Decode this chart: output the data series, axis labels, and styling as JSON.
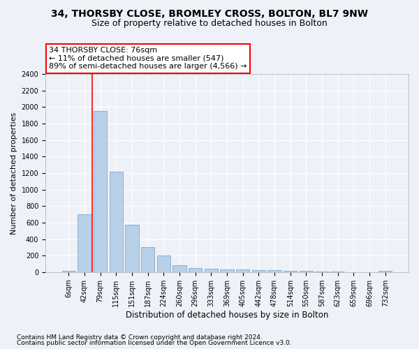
{
  "title_line1": "34, THORSBY CLOSE, BROMLEY CROSS, BOLTON, BL7 9NW",
  "title_line2": "Size of property relative to detached houses in Bolton",
  "xlabel": "Distribution of detached houses by size in Bolton",
  "ylabel": "Number of detached properties",
  "categories": [
    "6sqm",
    "42sqm",
    "79sqm",
    "115sqm",
    "151sqm",
    "187sqm",
    "224sqm",
    "260sqm",
    "296sqm",
    "333sqm",
    "369sqm",
    "405sqm",
    "442sqm",
    "478sqm",
    "514sqm",
    "550sqm",
    "587sqm",
    "623sqm",
    "659sqm",
    "696sqm",
    "732sqm"
  ],
  "values": [
    15,
    700,
    1950,
    1220,
    575,
    305,
    200,
    80,
    48,
    38,
    35,
    30,
    20,
    25,
    18,
    15,
    5,
    5,
    2,
    2,
    18
  ],
  "bar_color": "#b8d0e8",
  "bar_edge_color": "#6a9fc8",
  "vline_x": 2,
  "vline_color": "red",
  "annotation_line1": "34 THORSBY CLOSE: 76sqm",
  "annotation_line2": "← 11% of detached houses are smaller (547)",
  "annotation_line3": "89% of semi-detached houses are larger (4,566) →",
  "annotation_box_color": "white",
  "annotation_box_edge_color": "red",
  "ylim": [
    0,
    2400
  ],
  "yticks": [
    0,
    200,
    400,
    600,
    800,
    1000,
    1200,
    1400,
    1600,
    1800,
    2000,
    2200,
    2400
  ],
  "footer_line1": "Contains HM Land Registry data © Crown copyright and database right 2024.",
  "footer_line2": "Contains public sector information licensed under the Open Government Licence v3.0.",
  "background_color": "#eef2f8",
  "grid_color": "#ffffff",
  "title1_fontsize": 10,
  "title2_fontsize": 9,
  "xlabel_fontsize": 8.5,
  "ylabel_fontsize": 8,
  "tick_fontsize": 7,
  "annot_fontsize": 8,
  "footer_fontsize": 6.5
}
